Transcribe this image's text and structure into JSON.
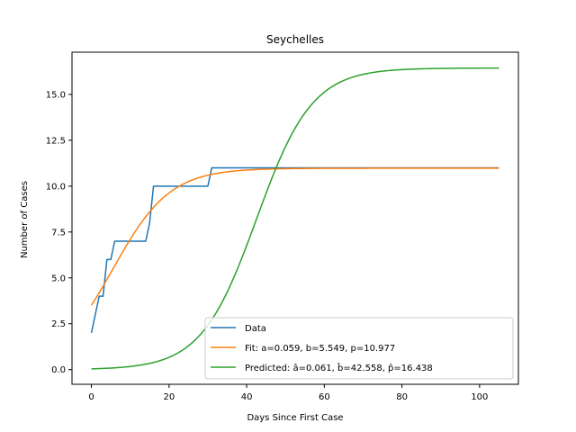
{
  "chart_data": {
    "type": "line",
    "title": "Seychelles",
    "xlabel": "Days Since First Case",
    "ylabel": "Number of Cases",
    "xlim": [
      -5,
      110
    ],
    "ylim": [
      -0.8,
      17.3
    ],
    "xticks": [
      0,
      20,
      40,
      60,
      80,
      100
    ],
    "yticks": [
      0.0,
      2.5,
      5.0,
      7.5,
      10.0,
      12.5,
      15.0
    ],
    "xtick_labels": [
      "0",
      "20",
      "40",
      "60",
      "80",
      "100"
    ],
    "ytick_labels": [
      "0.0",
      "2.5",
      "5.0",
      "7.5",
      "10.0",
      "12.5",
      "15.0"
    ],
    "grid": false,
    "legend_position": "lower-right",
    "series": [
      {
        "name": "Data",
        "color": "#1f77b4",
        "kind": "step-data",
        "x": [
          0,
          1,
          2,
          3,
          4,
          5,
          6,
          14,
          15,
          16,
          30,
          31,
          105
        ],
        "y": [
          2,
          3,
          4,
          4,
          6,
          6,
          7,
          7,
          8,
          10,
          10,
          11,
          11
        ]
      },
      {
        "name": "Fit: a=0.059, b=5.549, p=10.977",
        "color": "#ff7f0e",
        "kind": "logistic",
        "params": {
          "p": 10.977,
          "b": 5.549,
          "k": 0.136
        },
        "x_range": [
          0,
          105
        ]
      },
      {
        "name": "Predicted: â=0.061, b̂=42.558, p̂=16.438",
        "color": "#2ca02c",
        "kind": "logistic",
        "params": {
          "p": 16.438,
          "b": 42.558,
          "k": 0.14
        },
        "x_range": [
          0,
          105
        ]
      }
    ]
  }
}
